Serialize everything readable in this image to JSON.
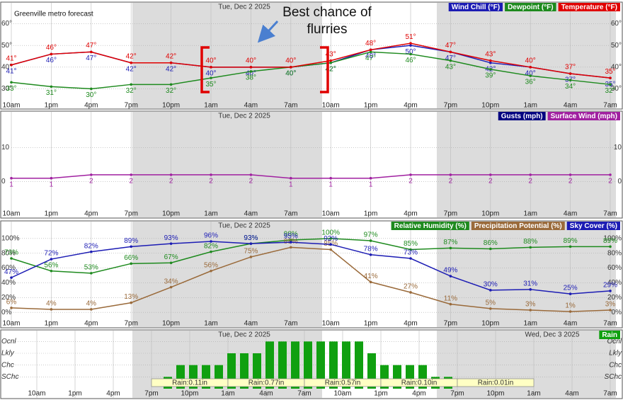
{
  "chart_data": [
    {
      "type": "line",
      "annotations": [
        "Greenville metro forecast",
        "Best chance of flurries"
      ],
      "date_labels": [
        "Tue, Dec 2 2025"
      ],
      "categories": [
        "10am",
        "1pm",
        "4pm",
        "7pm",
        "10pm",
        "1am",
        "4am",
        "7am",
        "10am",
        "1pm",
        "4pm",
        "7pm",
        "10pm",
        "1am",
        "4am",
        "7am"
      ],
      "ylim": [
        21,
        69
      ],
      "yticks": [
        {
          "value": 30,
          "label": "30°"
        },
        {
          "value": 40,
          "label": "40°"
        },
        {
          "value": 50,
          "label": "50°"
        },
        {
          "value": 60,
          "label": "60°"
        }
      ],
      "grid": true,
      "series": [
        {
          "name": "Wind Chill (°F)",
          "color": "#1c1cb4",
          "values": [
            41,
            46,
            47,
            42,
            42,
            40,
            40,
            40,
            42,
            48,
            50,
            47,
            42,
            40,
            37,
            35
          ],
          "value_labels": [
            "41°",
            "46°",
            "47°",
            "42°",
            "42°",
            "40°",
            "40°",
            "40°",
            "42°",
            "48°",
            "50°",
            "47°",
            "42°",
            "40°",
            "37°",
            "35°"
          ]
        },
        {
          "name": "Dewpoint (°F)",
          "color": "#1e8a1e",
          "values": [
            33,
            31,
            30,
            32,
            32,
            35,
            38,
            40,
            42,
            47,
            46,
            43,
            39,
            36,
            34,
            32
          ],
          "value_labels": [
            "33°",
            "31°",
            "30°",
            "32°",
            "32°",
            "35°",
            "38°",
            "40°",
            "42°",
            "47°",
            "46°",
            "43°",
            "39°",
            "36°",
            "34°",
            "32°"
          ]
        },
        {
          "name": "Temperature (°F)",
          "color": "#e00000",
          "values": [
            41,
            46,
            47,
            42,
            42,
            40,
            40,
            40,
            43,
            48,
            51,
            47,
            43,
            40,
            37,
            35
          ],
          "value_labels": [
            "41°",
            "46°",
            "47°",
            "42°",
            "42°",
            "40°",
            "40°",
            "40°",
            "43°",
            "48°",
            "51°",
            "47°",
            "43°",
            "40°",
            "37°",
            "35°"
          ]
        }
      ]
    },
    {
      "type": "line",
      "date_labels": [
        "Tue, Dec 2 2025"
      ],
      "categories": [
        "10am",
        "1pm",
        "4pm",
        "7pm",
        "10pm",
        "1am",
        "4am",
        "7am",
        "10am",
        "1pm",
        "4pm",
        "7pm",
        "10pm",
        "1am",
        "4am",
        "7am"
      ],
      "ylim": [
        -9,
        20
      ],
      "yticks": [
        0,
        10
      ],
      "grid": true,
      "series": [
        {
          "name": "Gusts (mph)",
          "color": "#000080",
          "values": [
            null,
            null,
            null,
            null,
            null,
            null,
            null,
            null,
            null,
            null,
            null,
            null,
            null,
            null,
            null,
            null
          ]
        },
        {
          "name": "Surface Wind (mph)",
          "color": "#a020a0",
          "show_values": true,
          "values": [
            1,
            1,
            2,
            2,
            2,
            2,
            2,
            1,
            1,
            1,
            2,
            2,
            2,
            2,
            2,
            2
          ]
        }
      ]
    },
    {
      "type": "line",
      "date_labels": [
        "Tue, Dec 2 2025"
      ],
      "categories": [
        "10am",
        "1pm",
        "4pm",
        "7pm",
        "10pm",
        "1am",
        "4am",
        "7am",
        "10am",
        "1pm",
        "4pm",
        "7pm",
        "10pm",
        "1am",
        "4am",
        "7am"
      ],
      "ylim": [
        -20,
        120
      ],
      "yticks": [
        {
          "value": 0,
          "label": "0%"
        },
        {
          "value": 20,
          "label": "20%"
        },
        {
          "value": 40,
          "label": "40%"
        },
        {
          "value": 60,
          "label": "60%"
        },
        {
          "value": 80,
          "label": "80%"
        },
        {
          "value": 100,
          "label": "100%"
        }
      ],
      "grid": true,
      "series": [
        {
          "name": "Relative Humidity (%)",
          "color": "#1e8a1e",
          "values": [
            73,
            56,
            53,
            66,
            67,
            82,
            93,
            98,
            100,
            97,
            85,
            87,
            86,
            88,
            89,
            89
          ],
          "value_labels": [
            "73%",
            "56%",
            "53%",
            "66%",
            "67%",
            "82%",
            "93%",
            "98%",
            "100%",
            "97%",
            "85%",
            "87%",
            "86%",
            "88%",
            "89%",
            "89%"
          ]
        },
        {
          "name": "Precipitation Potential (%)",
          "color": "#9a6a3a",
          "values": [
            6,
            4,
            4,
            13,
            34,
            56,
            75,
            88,
            85,
            41,
            27,
            11,
            5,
            3,
            1,
            3
          ],
          "value_labels": [
            "6%",
            "4%",
            "4%",
            "13%",
            "34%",
            "56%",
            "75%",
            "88%",
            "85%",
            "41%",
            "27%",
            "11%",
            "5%",
            "3%",
            "1%",
            "3%"
          ]
        },
        {
          "name": "Sky Cover (%)",
          "color": "#1c1cb4",
          "values": [
            47,
            72,
            82,
            89,
            93,
            96,
            93,
            95,
            92,
            78,
            73,
            49,
            30,
            31,
            25,
            29
          ],
          "value_labels": [
            "47%",
            "72%",
            "82%",
            "89%",
            "93%",
            "96%",
            "93%",
            "95%",
            "92%",
            "78%",
            "73%",
            "49%",
            "30%",
            "31%",
            "25%",
            "29%"
          ]
        }
      ]
    },
    {
      "type": "bar",
      "date_labels": [
        "Tue, Dec 2 2025",
        "Wed, Dec 3 2025"
      ],
      "annotations": [
        "Rain:0.11in",
        "Rain:0.77in",
        "Rain:0.57in",
        "Rain:0.10in",
        "Rain:0.01in"
      ],
      "categories": [
        null,
        null,
        "10am",
        null,
        null,
        "1pm",
        null,
        null,
        "4pm",
        null,
        null,
        "7pm",
        null,
        null,
        "10pm",
        null,
        null,
        "1am",
        null,
        null,
        "4am",
        null,
        null,
        "7am",
        null,
        null,
        "10am",
        null,
        null,
        "1pm",
        null,
        null,
        "4pm",
        null,
        null,
        "7pm",
        null,
        null,
        "10pm",
        null,
        null,
        "1am",
        null,
        null,
        "4am",
        null,
        null,
        "7am"
      ],
      "ylim": [
        0,
        4.8
      ],
      "yticks": [
        {
          "value": 1,
          "label": "SChc"
        },
        {
          "value": 2,
          "label": "Chc"
        },
        {
          "value": 3,
          "label": "Lkly"
        },
        {
          "value": 4,
          "label": "Ocnl"
        }
      ],
      "grid": true,
      "series": [
        {
          "name": "Rain",
          "color": "#10a010",
          "values": [
            0,
            0,
            0,
            0,
            0,
            0,
            0,
            0,
            0,
            0,
            0,
            0,
            1,
            2,
            2,
            2,
            2,
            3,
            3,
            3,
            4,
            4,
            4,
            4,
            4,
            4,
            4,
            4,
            3,
            2,
            2,
            2,
            2,
            1,
            1,
            0,
            0,
            0,
            0,
            0,
            0,
            0,
            0,
            0,
            0,
            0,
            0,
            0
          ]
        }
      ]
    }
  ]
}
